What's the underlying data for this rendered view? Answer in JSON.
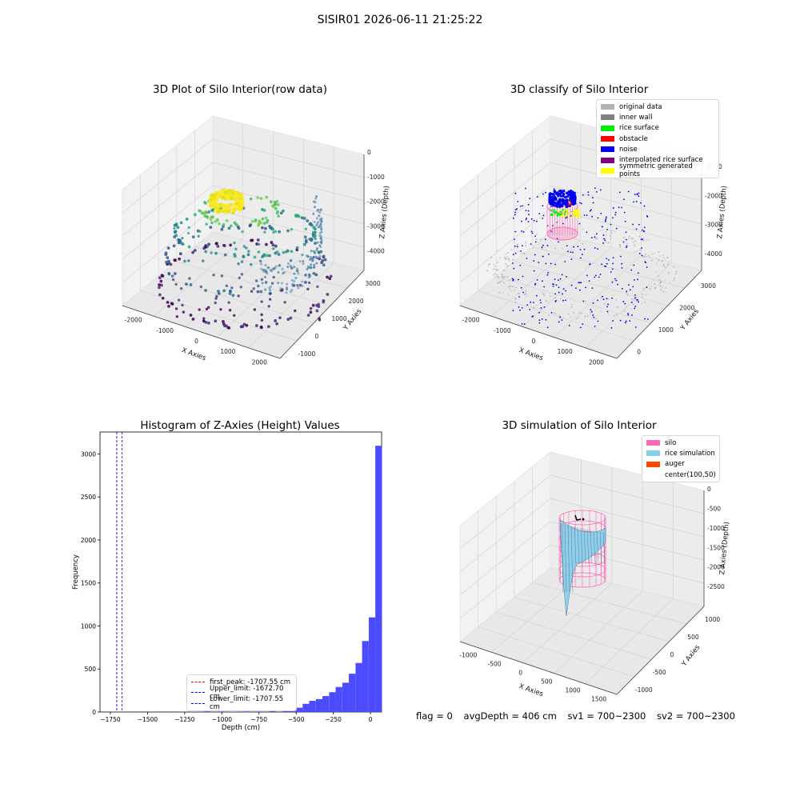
{
  "figure": {
    "suptitle": "SISIR01 2026-06-11 21:25:22",
    "status": {
      "flag": "flag = 0",
      "avg_depth": "avgDepth = 406 cm",
      "sv1": "sv1 = 700~2300",
      "sv2": "sv2 = 700~2300"
    }
  },
  "chart_data": [
    {
      "type": "scatter",
      "title": "3D Plot of Silo Interior(row data)",
      "xlabel": "X Axies",
      "ylabel": "Y Axies",
      "zlabel": "Z Axies (Depth)",
      "x_ticks": [
        "-2000",
        "-1000",
        "0",
        "1000",
        "2000"
      ],
      "y_ticks": [
        "-1000",
        "0",
        "1000",
        "2000",
        "3000"
      ],
      "z_ticks": [
        "0",
        "-1000",
        "-2000",
        "-3000",
        "-4000"
      ],
      "xlim": [
        -2500,
        2500
      ],
      "ylim": [
        -1200,
        3800
      ],
      "zlim": [
        -4700,
        0
      ],
      "colormap": "viridis",
      "colors": {
        "low": "#440154",
        "mid": "#21918c",
        "high": "#fde725"
      }
    },
    {
      "type": "scatter",
      "title": "3D classify of Silo Interior",
      "xlabel": "X Axies",
      "ylabel": "Y Axies",
      "zlabel": "Z Axies (Depth)",
      "x_ticks": [
        "-2000",
        "-1000",
        "0",
        "1000",
        "2000"
      ],
      "y_ticks": [
        "0",
        "1000",
        "2000",
        "3000"
      ],
      "z_ticks": [
        "-1000",
        "-2000",
        "-3000",
        "-4000"
      ],
      "legend": [
        {
          "label": "original data",
          "color": "#b3b3b3"
        },
        {
          "label": "inner wall",
          "color": "#808080"
        },
        {
          "label": "rice surface",
          "color": "#00ee00"
        },
        {
          "label": "obstacle",
          "color": "#ff0000"
        },
        {
          "label": "noise",
          "color": "#0000ee"
        },
        {
          "label": "interpolated rice surface",
          "color": "#800080"
        },
        {
          "label": "symmetric generated points",
          "color": "#ffff00"
        }
      ],
      "legend_position": "top-right"
    },
    {
      "type": "bar",
      "subtype": "histogram",
      "title": "Histogram of Z-Axies (Height) Values",
      "xlabel": "Depth (cm)",
      "ylabel": "Frequency",
      "xlim": [
        -1820,
        75
      ],
      "ylim": [
        0,
        3255
      ],
      "x_ticks": [
        -1750,
        -1500,
        -1250,
        -1000,
        -750,
        -500,
        -250,
        0
      ],
      "y_ticks": [
        0,
        500,
        1000,
        1500,
        2000,
        2500,
        3000
      ],
      "bar_color": "#4b4bff",
      "bin_width": 44.5,
      "bins": [
        {
          "x": -1192,
          "count": 5
        },
        {
          "x": -1102,
          "count": 8
        },
        {
          "x": -1013,
          "count": 6
        },
        {
          "x": -924,
          "count": 5
        },
        {
          "x": -835,
          "count": 7
        },
        {
          "x": -746,
          "count": 6
        },
        {
          "x": -657,
          "count": 10
        },
        {
          "x": -568,
          "count": 14
        },
        {
          "x": -523,
          "count": 22
        },
        {
          "x": -479,
          "count": 50
        },
        {
          "x": -434,
          "count": 95
        },
        {
          "x": -390,
          "count": 130
        },
        {
          "x": -345,
          "count": 150
        },
        {
          "x": -301,
          "count": 185
        },
        {
          "x": -256,
          "count": 230
        },
        {
          "x": -212,
          "count": 290
        },
        {
          "x": -167,
          "count": 340
        },
        {
          "x": -123,
          "count": 445
        },
        {
          "x": -78,
          "count": 570
        },
        {
          "x": -34,
          "count": 825
        },
        {
          "x": 11,
          "count": 1100
        },
        {
          "x": 55,
          "count": 3095
        }
      ],
      "vlines": [
        {
          "label": "first_peak: -1707.55 cm",
          "x": -1707.55,
          "color": "#ff0000"
        },
        {
          "label": "Upper_limit: -1672.70 cm",
          "x": -1672.7,
          "color": "#0000ff"
        },
        {
          "label": "Lower_limit: -1707.55 cm",
          "x": -1707.55,
          "color": "#0000ff"
        }
      ],
      "legend_position": "lower center"
    },
    {
      "type": "area",
      "subtype": "surface3d",
      "title": "3D simulation of Silo Interior",
      "xlabel": "X Axies",
      "ylabel": "Y Axies",
      "zlabel": "Z Axies (Depth)",
      "x_ticks": [
        "-1000",
        "-500",
        "0",
        "500",
        "1000",
        "1500"
      ],
      "y_ticks": [
        "-1000",
        "-500",
        "0",
        "500",
        "1000"
      ],
      "z_ticks": [
        "0",
        "-500",
        "-1000",
        "-1500",
        "-2000",
        "-2500"
      ],
      "legend": [
        {
          "label": "silo",
          "color": "#ff69b4"
        },
        {
          "label": "rice simulation",
          "color": "#87ceeb"
        },
        {
          "label": "auger",
          "color": "#ff4500"
        },
        {
          "label": "center(100,50)",
          "color": ""
        }
      ],
      "legend_position": "top-right"
    }
  ]
}
